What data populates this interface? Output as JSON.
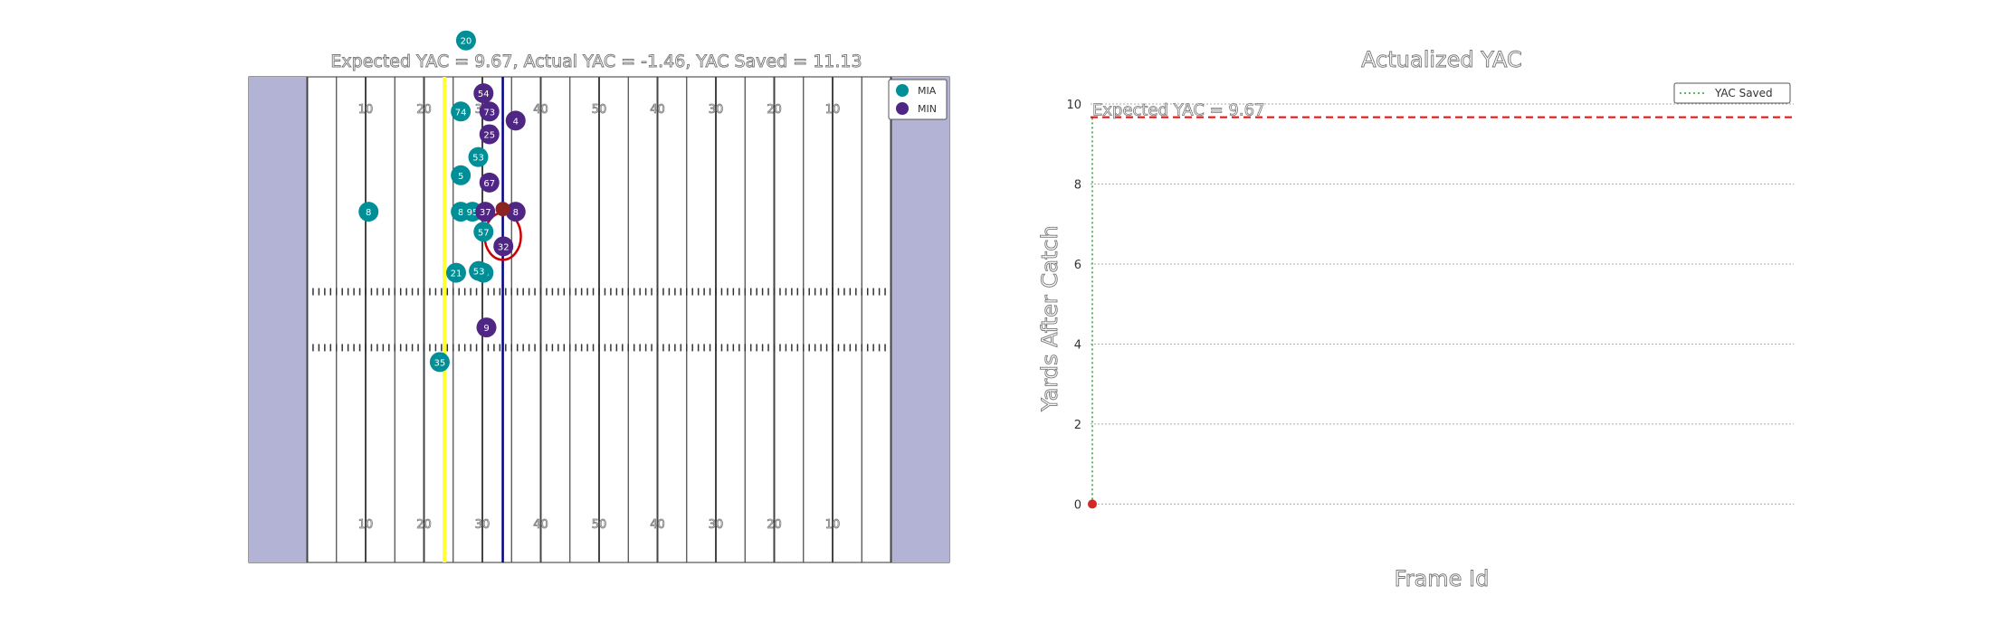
{
  "chart_data": [
    {
      "type": "scatter",
      "title": "Expected YAC = 9.67, Actual YAC = -1.46, YAC Saved = 11.13",
      "yard_numbers": [
        "10",
        "20",
        "30",
        "40",
        "50",
        "40",
        "30",
        "20",
        "10"
      ],
      "line_of_scrimmage": 33.5,
      "first_down_line": 23.5,
      "field_colors": {
        "endzone": "#b3b3d6",
        "line_of_scrimmage": "#00008b",
        "first_down": "#ffff33",
        "mia": "#008e97",
        "min": "#4f2683",
        "ball": "#8b2323",
        "tackle_ring": "#cc0000"
      },
      "series": [
        {
          "name": "MIA",
          "color": "#008e97",
          "points": [
            {
              "x": 10.5,
              "y": 38.5,
              "label": "8"
            },
            {
              "x": 26.3,
              "y": 42.5,
              "label": "5"
            },
            {
              "x": 26.3,
              "y": 49.5,
              "label": "74"
            },
            {
              "x": 26.3,
              "y": 38.5,
              "label": "8"
            },
            {
              "x": 29.3,
              "y": 44.5,
              "label": "53"
            },
            {
              "x": 28.3,
              "y": 38.5,
              "label": "95"
            },
            {
              "x": 30.2,
              "y": 36.3,
              "label": "57"
            },
            {
              "x": 30.2,
              "y": 31.8,
              "label": "23"
            },
            {
              "x": 25.5,
              "y": 31.8,
              "label": "21"
            },
            {
              "x": 29.4,
              "y": 32.0,
              "label": "53"
            },
            {
              "x": 22.7,
              "y": 22.0,
              "label": "35"
            },
            {
              "x": 27.2,
              "y": 57.3,
              "label": "20"
            }
          ]
        },
        {
          "name": "MIN",
          "color": "#4f2683",
          "points": [
            {
              "x": 30.2,
              "y": 51.5,
              "label": "54"
            },
            {
              "x": 31.2,
              "y": 49.5,
              "label": "73"
            },
            {
              "x": 35.7,
              "y": 48.5,
              "label": "4"
            },
            {
              "x": 31.2,
              "y": 47.0,
              "label": "25"
            },
            {
              "x": 31.2,
              "y": 41.7,
              "label": "67"
            },
            {
              "x": 30.5,
              "y": 38.5,
              "label": "37"
            },
            {
              "x": 35.7,
              "y": 38.5,
              "label": "8"
            },
            {
              "x": 33.6,
              "y": 34.7,
              "label": "32"
            },
            {
              "x": 30.7,
              "y": 25.8,
              "label": "9"
            }
          ]
        }
      ],
      "ball": {
        "x": 33.5,
        "y": 38.8
      },
      "tackle_ring": {
        "x": 33.5,
        "y": 35.8
      },
      "legend": [
        "MIA",
        "MIN"
      ],
      "legend_position": "upper-right"
    },
    {
      "type": "line",
      "title": "Actualized YAC",
      "xlabel": "Frame Id",
      "ylabel": "Yards After Catch",
      "ylim": [
        -1.46,
        10.0
      ],
      "yticks": [
        "0",
        "2",
        "4",
        "6",
        "8",
        "10"
      ],
      "grid": true,
      "series": [
        {
          "name": "YAC Saved",
          "style": "dotted",
          "color": "#2ca02c",
          "x": [
            0,
            0
          ],
          "y": [
            0,
            9.67
          ]
        }
      ],
      "expected_yac": {
        "value": 9.67,
        "label": "Expected YAC = 9.67",
        "color": "#ff0000",
        "style": "dashed"
      },
      "points": [
        {
          "x": 0,
          "y": 0,
          "color": "#d62728"
        }
      ],
      "legend": [
        "YAC Saved"
      ],
      "legend_position": "upper-right"
    }
  ]
}
